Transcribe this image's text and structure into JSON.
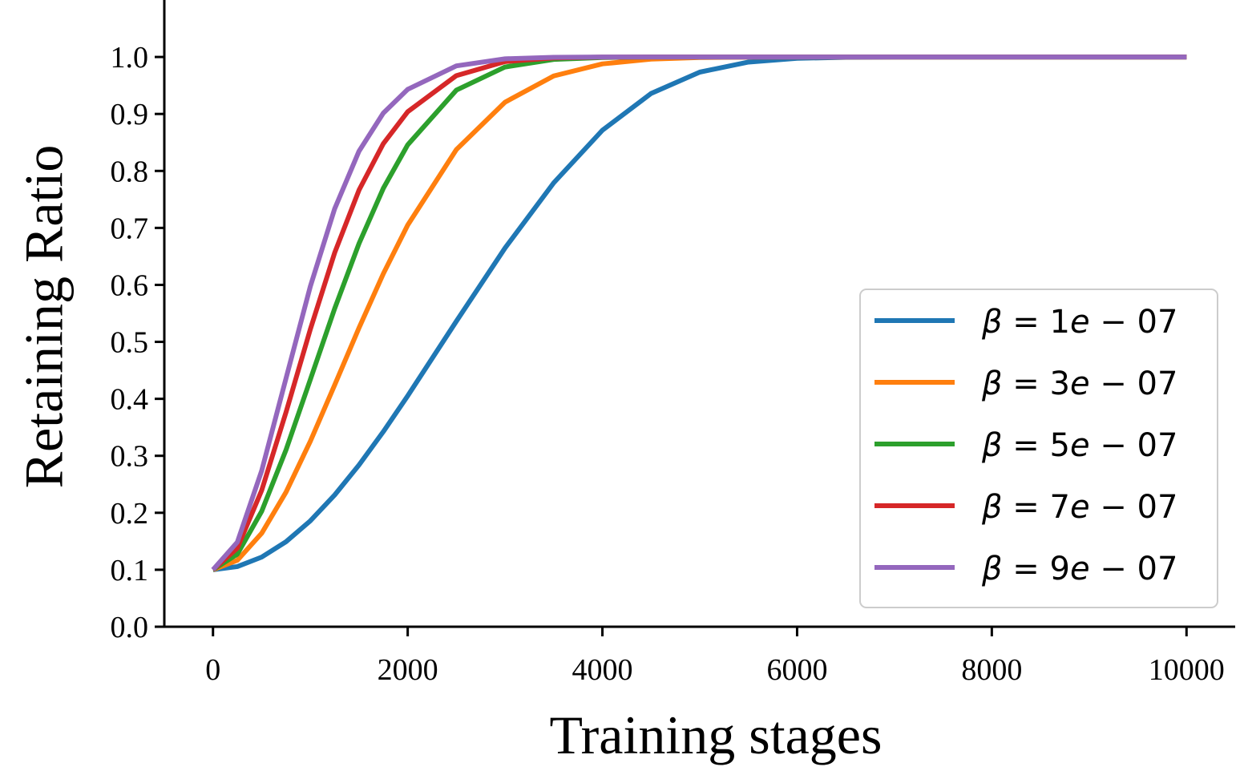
{
  "chart_data": {
    "type": "line",
    "title": "",
    "xlabel": "Training stages",
    "ylabel": "Retaining Ratio",
    "xlim": [
      -500,
      10500
    ],
    "ylim": [
      0.0,
      1.1
    ],
    "xticks": [
      0,
      2000,
      4000,
      6000,
      8000,
      10000
    ],
    "xtick_labels": [
      "0",
      "2000",
      "4000",
      "6000",
      "8000",
      "10000"
    ],
    "yticks": [
      0.0,
      0.1,
      0.2,
      0.3,
      0.4,
      0.5,
      0.6,
      0.7,
      0.8,
      0.9,
      1.0
    ],
    "ytick_labels": [
      "0.0",
      "0.1",
      "0.2",
      "0.3",
      "0.4",
      "0.5",
      "0.6",
      "0.7",
      "0.8",
      "0.9",
      "1.0"
    ],
    "grid": false,
    "legend_position": "center-right",
    "x": [
      0,
      250,
      500,
      750,
      1000,
      1250,
      1500,
      1750,
      2000,
      2500,
      3000,
      3500,
      4000,
      4500,
      5000,
      5500,
      6000,
      6500,
      7000,
      7500,
      8000,
      8500,
      9000,
      9500,
      10000
    ],
    "series": [
      {
        "name": "β = 1e − 07",
        "legend": {
          "beta": "β",
          "eq": " = 1",
          "e": "e",
          "rest": " − 07"
        },
        "color": "#1f77b4",
        "values": [
          0.1,
          0.1056,
          0.1222,
          0.1492,
          0.1859,
          0.2313,
          0.284,
          0.3425,
          0.4052,
          0.5362,
          0.6647,
          0.7791,
          0.8714,
          0.9359,
          0.9734,
          0.991,
          0.9976,
          0.9995,
          0.9999,
          1.0,
          1.0,
          1.0,
          1.0,
          1.0,
          1.0
        ]
      },
      {
        "name": "β = 3e − 07",
        "legend": {
          "beta": "β",
          "eq": " = 3",
          "e": "e",
          "rest": " − 07"
        },
        "color": "#ff7f0e",
        "values": [
          0.1,
          0.1166,
          0.164,
          0.2362,
          0.3256,
          0.4244,
          0.5246,
          0.6197,
          0.7049,
          0.8375,
          0.9207,
          0.9667,
          0.9879,
          0.9962,
          0.999,
          0.9998,
          1.0,
          1.0,
          1.0,
          1.0,
          1.0,
          1.0,
          1.0,
          1.0,
          1.0
        ]
      },
      {
        "name": "β = 5e − 07",
        "legend": {
          "beta": "β",
          "eq": " = 5",
          "e": "e",
          "rest": " − 07"
        },
        "color": "#2ca02c",
        "values": [
          0.1,
          0.1274,
          0.2026,
          0.3103,
          0.4339,
          0.5585,
          0.6726,
          0.7696,
          0.8458,
          0.9418,
          0.9824,
          0.9957,
          0.9991,
          0.9999,
          1.0,
          1.0,
          1.0,
          1.0,
          1.0,
          1.0,
          1.0,
          1.0,
          1.0,
          1.0,
          1.0
        ]
      },
      {
        "name": "β = 7e − 07",
        "legend": {
          "beta": "β",
          "eq": " = 7",
          "e": "e",
          "rest": " − 07"
        },
        "color": "#d62728",
        "values": [
          0.1,
          0.138,
          0.2393,
          0.3764,
          0.5221,
          0.6565,
          0.7664,
          0.848,
          0.9039,
          0.9673,
          0.9919,
          0.9984,
          0.9998,
          1.0,
          1.0,
          1.0,
          1.0,
          1.0,
          1.0,
          1.0,
          1.0,
          1.0,
          1.0,
          1.0,
          1.0
        ]
      },
      {
        "name": "β = 9e − 07",
        "legend": {
          "beta": "β",
          "eq": " = 9",
          "e": "e",
          "rest": " − 07"
        },
        "color": "#9467bd",
        "values": [
          0.1,
          0.1485,
          0.2738,
          0.4359,
          0.5974,
          0.7337,
          0.8347,
          0.9016,
          0.9432,
          0.9844,
          0.9968,
          0.9995,
          0.9999,
          1.0,
          1.0,
          1.0,
          1.0,
          1.0,
          1.0,
          1.0,
          1.0,
          1.0,
          1.0,
          1.0,
          1.0
        ]
      }
    ]
  }
}
